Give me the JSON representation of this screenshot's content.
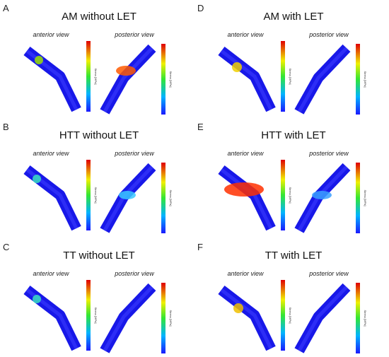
{
  "panels": [
    {
      "letter": "A",
      "title": "AM without LET",
      "views": [
        "anterior view",
        "posterior view"
      ],
      "colorbar_label": "Stress [MPa]"
    },
    {
      "letter": "B",
      "title": "HTT without LET",
      "views": [
        "anterior view",
        "posterior view"
      ],
      "colorbar_label": "Stress [MPa]"
    },
    {
      "letter": "C",
      "title": "TT without LET",
      "views": [
        "anterior view",
        "posterior view"
      ],
      "colorbar_label": "Stress [MPa]"
    },
    {
      "letter": "D",
      "title": "AM with LET",
      "views": [
        "anterior view",
        "posterior view"
      ],
      "colorbar_label": "Stress [MPa]"
    },
    {
      "letter": "E",
      "title": "HTT with LET",
      "views": [
        "anterior view",
        "posterior view"
      ],
      "colorbar_label": "Stress [MPa]"
    },
    {
      "letter": "F",
      "title": "TT with LET",
      "views": [
        "anterior view",
        "posterior view"
      ],
      "colorbar_label": "Stress [MPa]"
    }
  ]
}
